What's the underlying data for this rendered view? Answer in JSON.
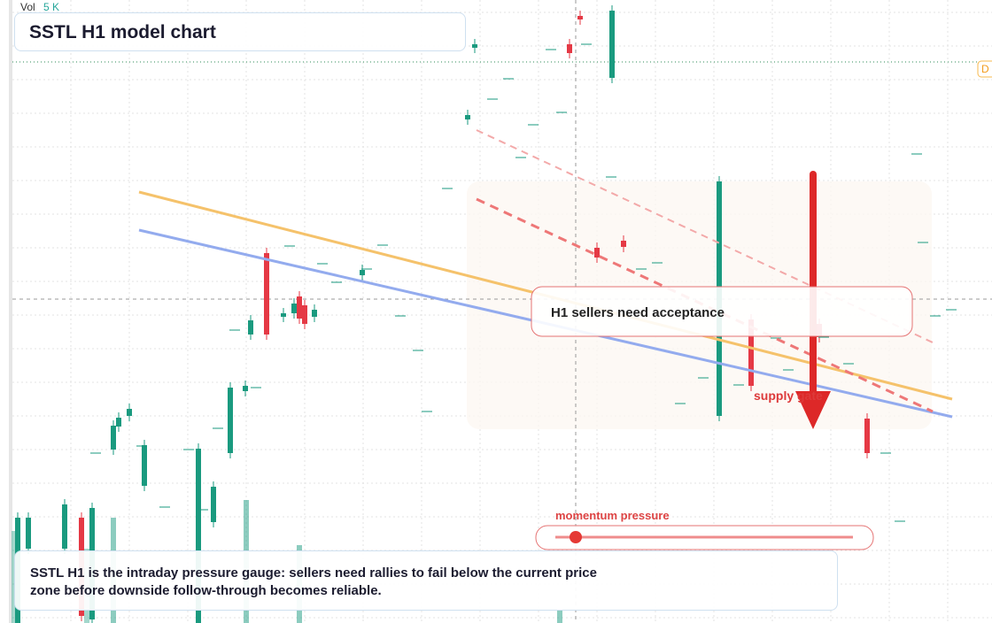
{
  "header": {
    "vol_label": "Vol",
    "vol_value": "5 K",
    "title": "SSTL H1 model chart"
  },
  "price_tag": "D",
  "callout": "H1 sellers need acceptance",
  "zone_label": "supply gate",
  "gauge": {
    "label": "momentum pressure"
  },
  "caption": "SSTL H1 is the intraday pressure gauge: sellers need rallies to fail below the current price zone before downside follow-through becomes reliable."
}
